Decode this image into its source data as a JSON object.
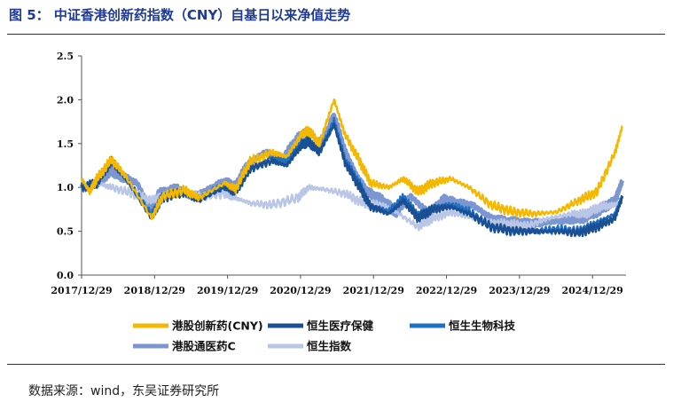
{
  "figure": {
    "title": "图 5：  中证香港创新药指数（CNY）自基日以来净值走势",
    "source": "数据来源：wind，东吴证券研究所"
  },
  "chart_data": {
    "type": "line",
    "title": "",
    "xlabel": "",
    "ylabel": "",
    "ylim": [
      0,
      2.5
    ],
    "yticks": [
      "0.0",
      "0.5",
      "1.0",
      "1.5",
      "2.0",
      "2.5"
    ],
    "xticks": [
      "2017/12/29",
      "2018/12/29",
      "2019/12/29",
      "2020/12/29",
      "2021/12/29",
      "2022/12/29",
      "2023/12/29",
      "2024/12/29"
    ],
    "xrange": [
      2017.99,
      2025.45
    ],
    "grid": false,
    "legend_placement": "bottom",
    "series": [
      {
        "name": "港股通医药C",
        "color": "#7b96d0",
        "width": 5,
        "points": [
          [
            2017.99,
            1.0
          ],
          [
            2018.2,
            1.05
          ],
          [
            2018.4,
            1.2
          ],
          [
            2018.55,
            1.12
          ],
          [
            2018.75,
            1.05
          ],
          [
            2018.95,
            0.72
          ],
          [
            2019.05,
            0.92
          ],
          [
            2019.3,
            0.98
          ],
          [
            2019.5,
            0.9
          ],
          [
            2019.75,
            0.98
          ],
          [
            2019.95,
            1.05
          ],
          [
            2020.1,
            1.0
          ],
          [
            2020.25,
            1.25
          ],
          [
            2020.5,
            1.4
          ],
          [
            2020.75,
            1.32
          ],
          [
            2020.95,
            1.55
          ],
          [
            2021.05,
            1.62
          ],
          [
            2021.15,
            1.45
          ],
          [
            2021.35,
            1.6
          ],
          [
            2021.45,
            1.8
          ],
          [
            2021.6,
            1.4
          ],
          [
            2021.75,
            1.15
          ],
          [
            2021.9,
            0.95
          ],
          [
            2022.1,
            0.85
          ],
          [
            2022.3,
            0.72
          ],
          [
            2022.5,
            0.9
          ],
          [
            2022.75,
            0.7
          ],
          [
            2022.95,
            0.85
          ],
          [
            2023.1,
            0.82
          ],
          [
            2023.35,
            0.8
          ],
          [
            2023.6,
            0.65
          ],
          [
            2023.85,
            0.6
          ],
          [
            2024.1,
            0.58
          ],
          [
            2024.3,
            0.6
          ],
          [
            2024.6,
            0.62
          ],
          [
            2024.85,
            0.65
          ],
          [
            2025.1,
            0.75
          ],
          [
            2025.3,
            0.85
          ],
          [
            2025.4,
            1.08
          ]
        ]
      },
      {
        "name": "恒生指数",
        "color": "#b9c6e6",
        "width": 2.5,
        "points": [
          [
            2017.99,
            1.0
          ],
          [
            2018.2,
            1.05
          ],
          [
            2018.4,
            1.0
          ],
          [
            2018.7,
            0.93
          ],
          [
            2018.95,
            0.85
          ],
          [
            2019.1,
            0.92
          ],
          [
            2019.3,
            0.96
          ],
          [
            2019.6,
            0.9
          ],
          [
            2019.95,
            0.93
          ],
          [
            2020.1,
            0.88
          ],
          [
            2020.3,
            0.82
          ],
          [
            2020.6,
            0.8
          ],
          [
            2020.95,
            0.88
          ],
          [
            2021.1,
            1.0
          ],
          [
            2021.3,
            0.98
          ],
          [
            2021.6,
            0.93
          ],
          [
            2021.85,
            0.82
          ],
          [
            2022.1,
            0.8
          ],
          [
            2022.3,
            0.72
          ],
          [
            2022.6,
            0.55
          ],
          [
            2022.8,
            0.65
          ],
          [
            2023.05,
            0.72
          ],
          [
            2023.3,
            0.66
          ],
          [
            2023.6,
            0.6
          ],
          [
            2023.85,
            0.58
          ],
          [
            2024.1,
            0.56
          ],
          [
            2024.4,
            0.65
          ],
          [
            2024.7,
            0.7
          ],
          [
            2024.9,
            0.7
          ],
          [
            2025.1,
            0.78
          ],
          [
            2025.3,
            0.8
          ],
          [
            2025.4,
            0.85
          ]
        ]
      },
      {
        "name": "恒生生物科技",
        "color": "#1f6fc2",
        "width": 2.5,
        "points": [
          [
            2017.99,
            1.0
          ],
          [
            2018.2,
            1.05
          ],
          [
            2018.4,
            1.28
          ],
          [
            2018.6,
            1.1
          ],
          [
            2018.95,
            0.68
          ],
          [
            2019.1,
            0.9
          ],
          [
            2019.4,
            0.95
          ],
          [
            2019.6,
            0.88
          ],
          [
            2019.95,
            1.02
          ],
          [
            2020.1,
            0.95
          ],
          [
            2020.3,
            1.2
          ],
          [
            2020.6,
            1.35
          ],
          [
            2020.8,
            1.28
          ],
          [
            2021.0,
            1.5
          ],
          [
            2021.1,
            1.55
          ],
          [
            2021.25,
            1.42
          ],
          [
            2021.45,
            1.75
          ],
          [
            2021.6,
            1.3
          ],
          [
            2021.8,
            1.05
          ],
          [
            2021.95,
            0.8
          ],
          [
            2022.2,
            0.72
          ],
          [
            2022.4,
            0.88
          ],
          [
            2022.6,
            0.68
          ],
          [
            2022.8,
            0.78
          ],
          [
            2023.05,
            0.8
          ],
          [
            2023.3,
            0.72
          ],
          [
            2023.6,
            0.55
          ],
          [
            2023.9,
            0.52
          ],
          [
            2024.2,
            0.5
          ],
          [
            2024.5,
            0.52
          ],
          [
            2024.8,
            0.5
          ],
          [
            2025.05,
            0.6
          ],
          [
            2025.3,
            0.7
          ],
          [
            2025.4,
            0.88
          ]
        ]
      },
      {
        "name": "恒生医疗保健",
        "color": "#1b4f94",
        "width": 2.5,
        "points": [
          [
            2017.99,
            1.0
          ],
          [
            2018.2,
            1.05
          ],
          [
            2018.4,
            1.3
          ],
          [
            2018.6,
            1.1
          ],
          [
            2018.95,
            0.65
          ],
          [
            2019.1,
            0.88
          ],
          [
            2019.4,
            0.95
          ],
          [
            2019.6,
            0.85
          ],
          [
            2019.95,
            1.0
          ],
          [
            2020.1,
            0.95
          ],
          [
            2020.3,
            1.22
          ],
          [
            2020.6,
            1.3
          ],
          [
            2020.8,
            1.25
          ],
          [
            2021.0,
            1.48
          ],
          [
            2021.1,
            1.52
          ],
          [
            2021.25,
            1.4
          ],
          [
            2021.45,
            1.72
          ],
          [
            2021.6,
            1.28
          ],
          [
            2021.8,
            1.0
          ],
          [
            2021.95,
            0.78
          ],
          [
            2022.2,
            0.7
          ],
          [
            2022.4,
            0.85
          ],
          [
            2022.6,
            0.65
          ],
          [
            2022.8,
            0.75
          ],
          [
            2023.05,
            0.78
          ],
          [
            2023.3,
            0.7
          ],
          [
            2023.6,
            0.55
          ],
          [
            2023.9,
            0.5
          ],
          [
            2024.2,
            0.5
          ],
          [
            2024.5,
            0.5
          ],
          [
            2024.8,
            0.48
          ],
          [
            2025.05,
            0.55
          ],
          [
            2025.3,
            0.65
          ],
          [
            2025.4,
            0.9
          ]
        ]
      },
      {
        "name": "港股创新药(CNY)",
        "color": "#f5b800",
        "width": 2.5,
        "points": [
          [
            2017.99,
            1.1
          ],
          [
            2018.1,
            0.95
          ],
          [
            2018.2,
            1.1
          ],
          [
            2018.4,
            1.32
          ],
          [
            2018.6,
            1.12
          ],
          [
            2018.95,
            0.65
          ],
          [
            2019.1,
            0.9
          ],
          [
            2019.4,
            0.97
          ],
          [
            2019.6,
            0.88
          ],
          [
            2019.95,
            1.05
          ],
          [
            2020.1,
            0.98
          ],
          [
            2020.3,
            1.3
          ],
          [
            2020.6,
            1.4
          ],
          [
            2020.8,
            1.35
          ],
          [
            2021.0,
            1.6
          ],
          [
            2021.1,
            1.65
          ],
          [
            2021.25,
            1.5
          ],
          [
            2021.45,
            2.0
          ],
          [
            2021.6,
            1.6
          ],
          [
            2021.8,
            1.3
          ],
          [
            2021.95,
            1.05
          ],
          [
            2022.2,
            1.0
          ],
          [
            2022.4,
            1.1
          ],
          [
            2022.6,
            0.95
          ],
          [
            2022.8,
            1.05
          ],
          [
            2023.05,
            1.1
          ],
          [
            2023.3,
            1.0
          ],
          [
            2023.6,
            0.8
          ],
          [
            2023.9,
            0.72
          ],
          [
            2024.2,
            0.7
          ],
          [
            2024.5,
            0.72
          ],
          [
            2024.8,
            0.85
          ],
          [
            2025.05,
            0.95
          ],
          [
            2025.3,
            1.4
          ],
          [
            2025.4,
            1.7
          ]
        ]
      }
    ]
  },
  "legend": {
    "rows": [
      [
        "港股创新药(CNY)",
        "恒生医疗保健",
        "恒生生物科技"
      ],
      [
        "港股通医药C",
        "恒生指数"
      ]
    ]
  }
}
